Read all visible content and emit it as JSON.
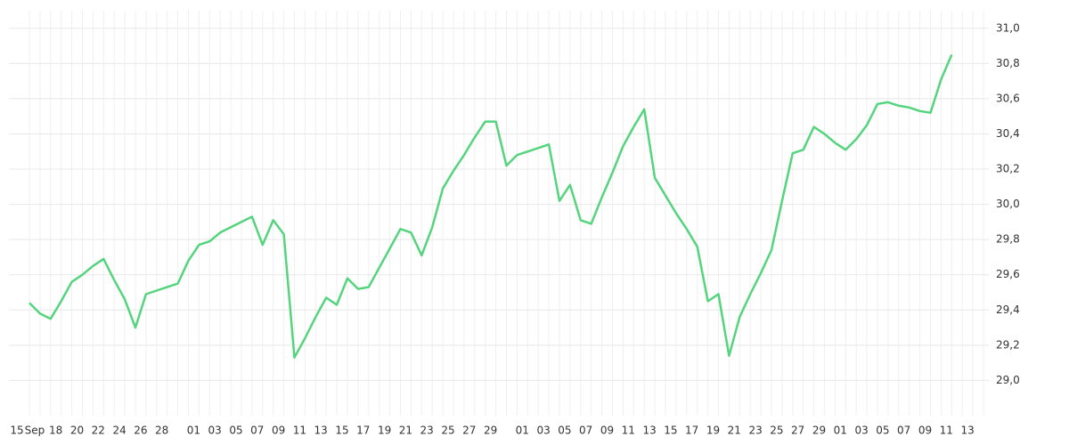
{
  "chart_data": {
    "type": "line",
    "categories": [
      "15",
      "Sep",
      null,
      "18",
      null,
      "20",
      null,
      "22",
      null,
      "24",
      null,
      "26",
      null,
      "28",
      null,
      null,
      "01",
      null,
      "03",
      null,
      "05",
      null,
      "07",
      null,
      "09",
      null,
      "11",
      null,
      "13",
      null,
      "15",
      null,
      "17",
      null,
      "19",
      null,
      "21",
      null,
      "23",
      null,
      "25",
      null,
      "27",
      null,
      "29",
      null,
      null,
      "01",
      null,
      "03",
      null,
      "05",
      null,
      "07",
      null,
      "09",
      null,
      "11",
      null,
      "13",
      null,
      "15",
      null,
      "17",
      null,
      "19",
      null,
      "21",
      null,
      "23",
      null,
      "25",
      null,
      "27",
      null,
      "29",
      null,
      "01",
      null,
      "03",
      null,
      "05",
      null,
      "07",
      null,
      "09",
      null,
      "11",
      null,
      "13",
      null
    ],
    "series": [
      {
        "color": "#55d47e",
        "values": [
          29.44,
          29.38,
          29.35,
          29.45,
          29.56,
          29.6,
          29.65,
          29.69,
          29.57,
          29.46,
          29.3,
          29.49,
          29.51,
          29.53,
          29.55,
          29.68,
          29.77,
          29.79,
          29.84,
          29.87,
          29.9,
          29.93,
          29.77,
          29.91,
          29.83,
          29.13,
          29.24,
          29.36,
          29.47,
          29.43,
          29.58,
          29.52,
          29.53,
          29.64,
          29.75,
          29.86,
          29.84,
          29.71,
          29.87,
          30.09,
          30.19,
          30.28,
          30.38,
          30.47,
          30.47,
          30.22,
          30.28,
          30.3,
          30.32,
          30.34,
          30.02,
          30.11,
          29.91,
          29.89,
          30.04,
          30.18,
          30.33,
          30.44,
          30.54,
          30.15,
          30.05,
          29.95,
          29.86,
          29.76,
          29.45,
          29.49,
          29.14,
          29.36,
          29.49,
          29.61,
          29.74,
          30.02,
          30.29,
          30.31,
          30.44,
          30.4,
          30.35,
          30.31,
          30.37,
          30.45,
          30.57,
          30.58,
          30.56,
          30.55,
          30.53,
          30.52,
          30.71,
          30.85,
          null,
          null,
          null
        ]
      }
    ],
    "ylim": [
      28.8,
      31.1
    ],
    "yticks": [
      {
        "value": 29.0,
        "label": "29,0"
      },
      {
        "value": 29.2,
        "label": "29,2"
      },
      {
        "value": 29.4,
        "label": "29,4"
      },
      {
        "value": 29.6,
        "label": "29,6"
      },
      {
        "value": 29.8,
        "label": "29,8"
      },
      {
        "value": 30.0,
        "label": "30,0"
      },
      {
        "value": 30.2,
        "label": "30,2"
      },
      {
        "value": 30.4,
        "label": "30,4"
      },
      {
        "value": 30.6,
        "label": "30,6"
      },
      {
        "value": 30.8,
        "label": "30,8"
      },
      {
        "value": 31.0,
        "label": "31,0"
      }
    ],
    "grid": true,
    "y_axis_side": "right"
  }
}
